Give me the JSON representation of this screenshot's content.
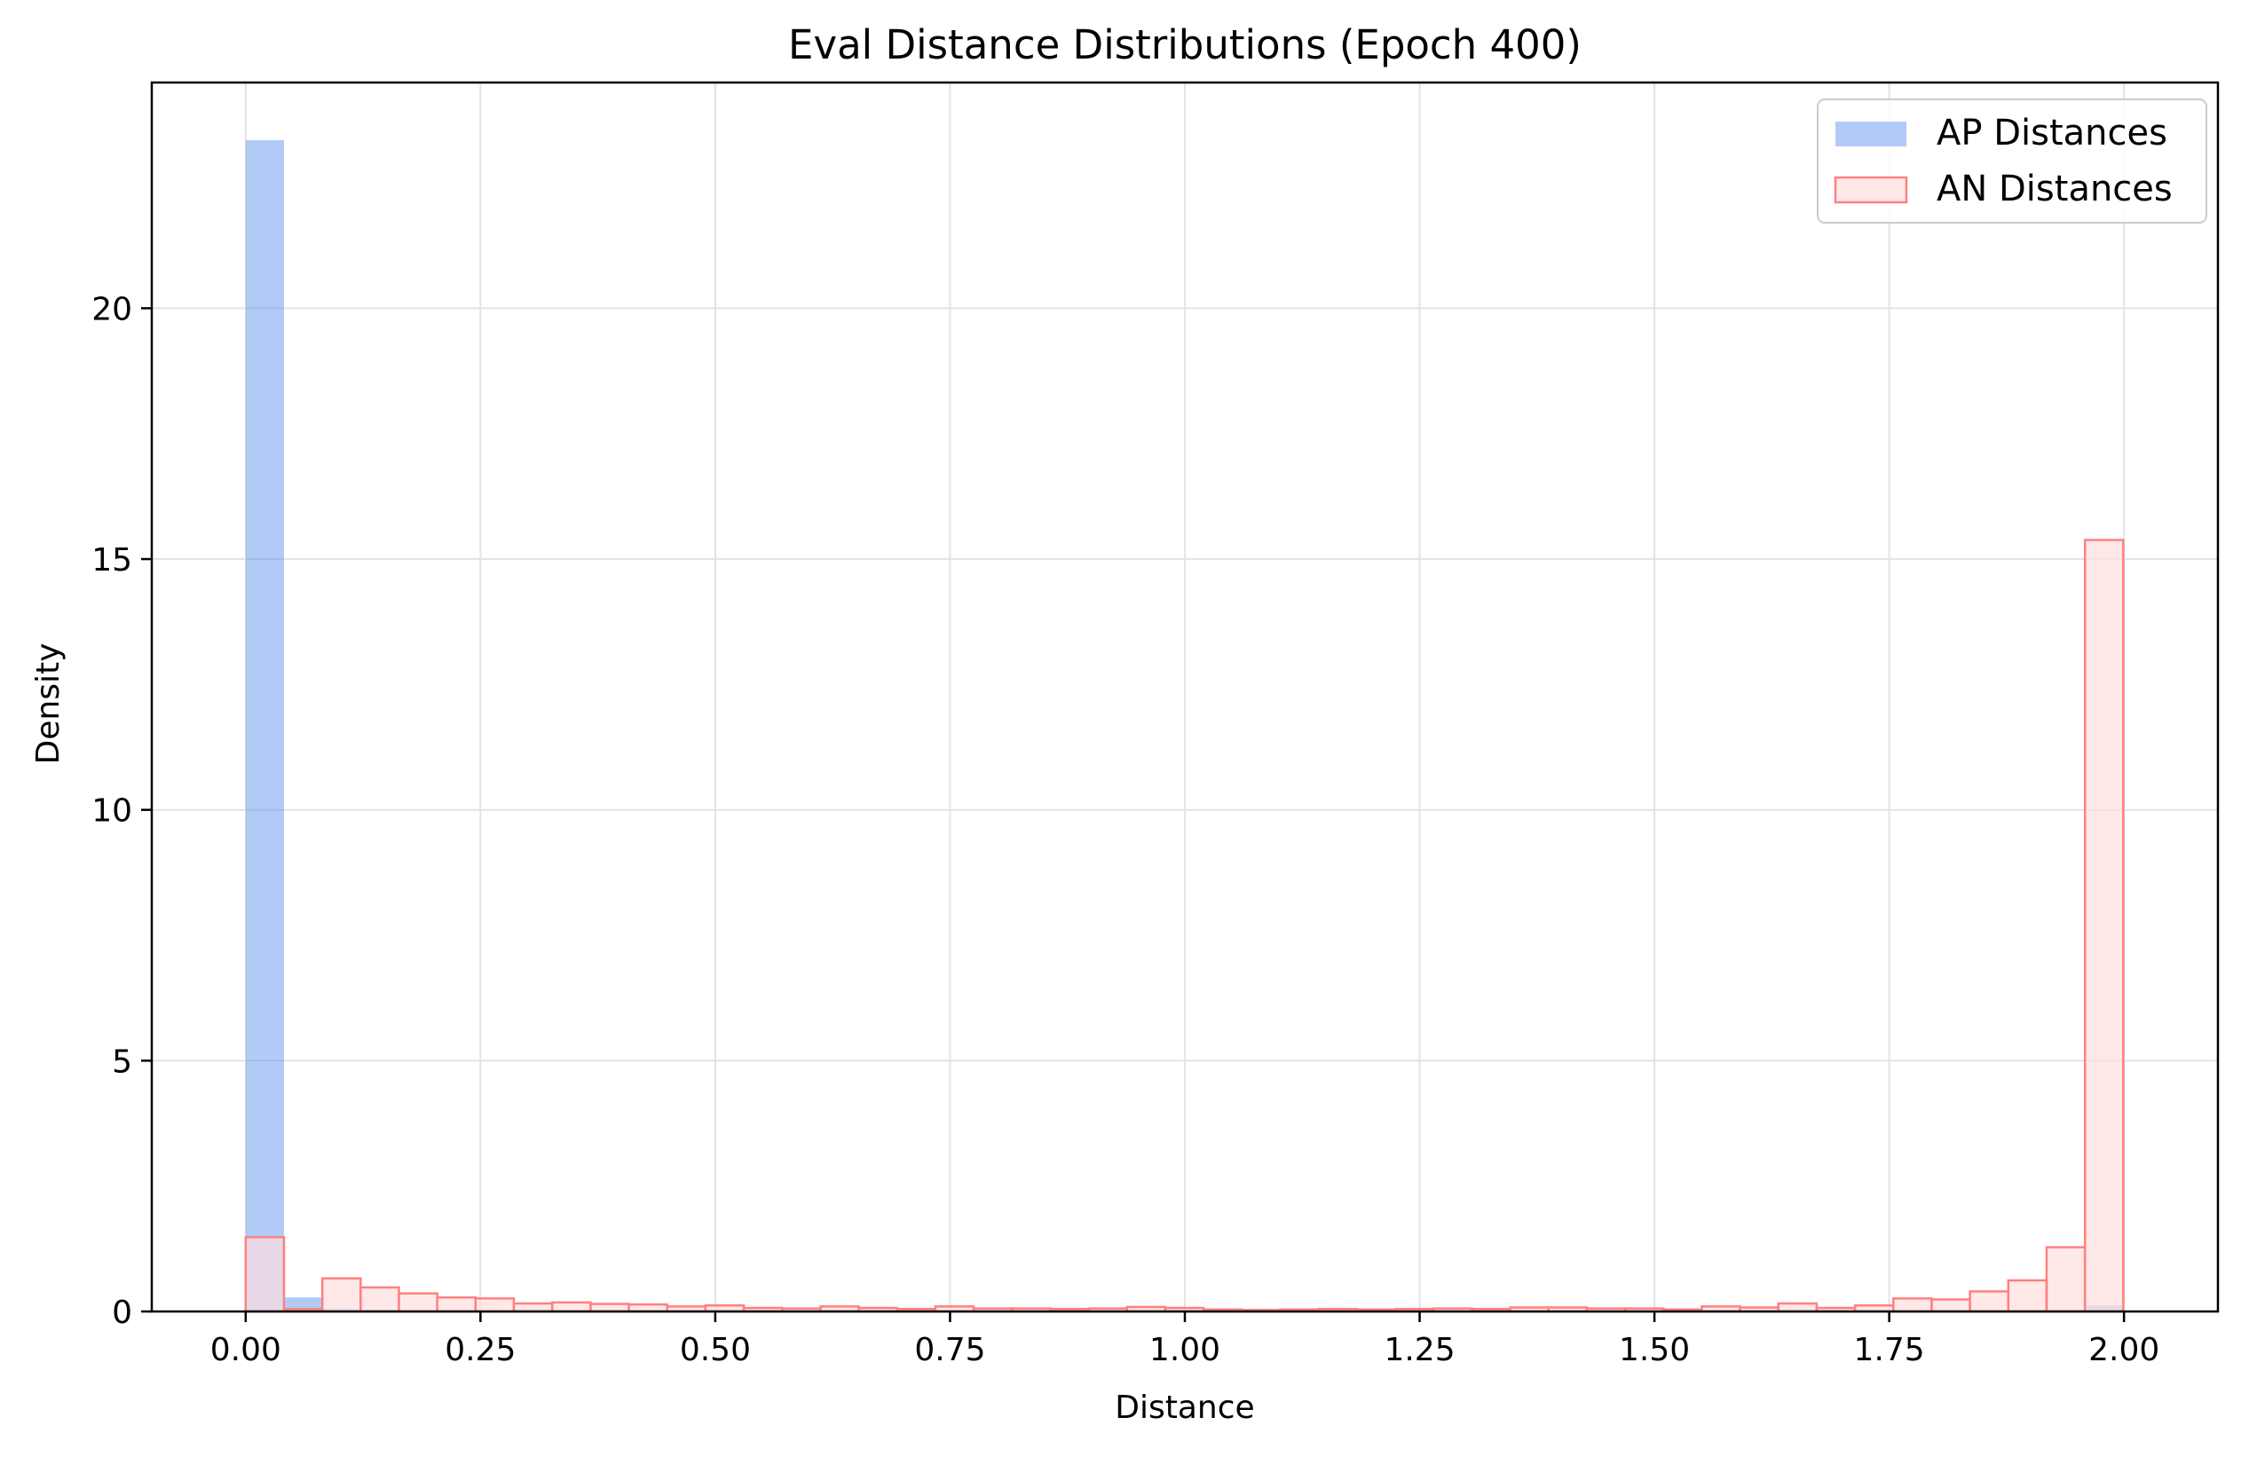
{
  "chart_data": {
    "type": "bar",
    "subtype": "histogram",
    "title": "Eval Distance Distributions (Epoch 400)",
    "xlabel": "Distance",
    "ylabel": "Density",
    "xlim": [
      -0.1,
      2.1
    ],
    "ylim": [
      0,
      24.5
    ],
    "xticks": [
      0.0,
      0.25,
      0.5,
      0.75,
      1.0,
      1.25,
      1.5,
      1.75,
      2.0
    ],
    "xtick_labels": [
      "0.00",
      "0.25",
      "0.50",
      "0.75",
      "1.00",
      "1.25",
      "1.50",
      "1.75",
      "2.00"
    ],
    "yticks": [
      0,
      5,
      10,
      15,
      20
    ],
    "ytick_labels": [
      "0",
      "5",
      "10",
      "15",
      "20"
    ],
    "grid": true,
    "legend_position": "top-right",
    "bin_start": 0.0,
    "bin_width": 0.0408,
    "series": [
      {
        "name": "AP Distances",
        "color": "#6495ED",
        "fill_opacity": 0.5,
        "style": "filled",
        "values": [
          23.35,
          0.28,
          0.05,
          0.03,
          0.02,
          0.02,
          0.01,
          0.01,
          0.01,
          0.01,
          0,
          0,
          0,
          0,
          0,
          0,
          0,
          0,
          0,
          0,
          0,
          0,
          0,
          0,
          0,
          0,
          0,
          0,
          0,
          0,
          0,
          0,
          0,
          0,
          0,
          0,
          0,
          0,
          0,
          0,
          0,
          0,
          0,
          0,
          0,
          0,
          0,
          0,
          0.12
        ]
      },
      {
        "name": "AN Distances",
        "color": "#FF9999",
        "edge_color": "#FF8080",
        "fill_color": "#FFDEDE",
        "style": "outlined",
        "values": [
          1.48,
          0.05,
          0.66,
          0.48,
          0.36,
          0.28,
          0.26,
          0.16,
          0.18,
          0.15,
          0.14,
          0.1,
          0.12,
          0.07,
          0.06,
          0.1,
          0.07,
          0.05,
          0.1,
          0.06,
          0.06,
          0.05,
          0.06,
          0.09,
          0.07,
          0.04,
          0.03,
          0.04,
          0.05,
          0.04,
          0.05,
          0.06,
          0.05,
          0.08,
          0.08,
          0.06,
          0.06,
          0.04,
          0.1,
          0.08,
          0.16,
          0.07,
          0.12,
          0.26,
          0.24,
          0.4,
          0.62,
          1.28,
          15.38
        ]
      }
    ]
  }
}
